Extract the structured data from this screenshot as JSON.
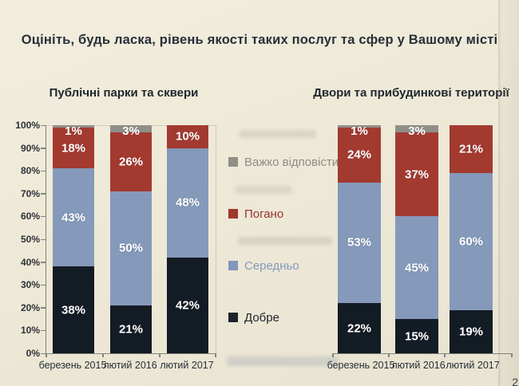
{
  "slide": {
    "title": "Оцініть, будь ласка, рівень якості таких послуг та сфер у Вашому місті",
    "page_number": "2"
  },
  "axis": {
    "y_ticks": [
      "0%",
      "10%",
      "20%",
      "30%",
      "40%",
      "50%",
      "60%",
      "70%",
      "80%",
      "90%",
      "100%"
    ]
  },
  "legend": {
    "items": [
      {
        "name": "Важко відповісти",
        "swatch_color": "#8f8f88",
        "text_color": "#8d8d85"
      },
      {
        "name": "Погано",
        "swatch_color": "#9d382f",
        "text_color": "#953530"
      },
      {
        "name": "Середньо",
        "swatch_color": "#8096bb",
        "text_color": "#8399bd"
      },
      {
        "name": "Добре",
        "swatch_color": "#1b232c",
        "text_color": "#1d252d"
      }
    ]
  },
  "chart_data": [
    {
      "type": "bar",
      "stacked": true,
      "title": "Публічні парки та сквери",
      "categories": [
        "березень 2015",
        "лютий 2016",
        "лютий 2017"
      ],
      "series": [
        {
          "name": "Добре",
          "color": "#131b24",
          "values": [
            38,
            21,
            42
          ]
        },
        {
          "name": "Середньо",
          "color": "#8599ba",
          "values": [
            43,
            50,
            48
          ]
        },
        {
          "name": "Погано",
          "color": "#a33a30",
          "values": [
            18,
            26,
            10
          ]
        },
        {
          "name": "Важко відповісти",
          "color": "#8f8f88",
          "values": [
            1,
            3,
            0
          ]
        }
      ],
      "value_suffix": "%",
      "ylim": [
        0,
        100
      ],
      "y_tick_step": 10,
      "y_axis_visible": true,
      "grid": false
    },
    {
      "type": "bar",
      "stacked": true,
      "title": "Двори та прибудинкові території",
      "categories": [
        "березень 2015",
        "лютий 2016",
        "лютий 2017"
      ],
      "series": [
        {
          "name": "Добре",
          "color": "#131b24",
          "values": [
            22,
            15,
            19
          ]
        },
        {
          "name": "Середньо",
          "color": "#8599ba",
          "values": [
            53,
            45,
            60
          ]
        },
        {
          "name": "Погано",
          "color": "#a33a30",
          "values": [
            24,
            37,
            21
          ]
        },
        {
          "name": "Важко відповісти",
          "color": "#8f8f88",
          "values": [
            1,
            3,
            0
          ]
        }
      ],
      "value_suffix": "%",
      "ylim": [
        0,
        100
      ],
      "y_tick_step": 10,
      "y_axis_visible": false,
      "grid": false,
      "legend_position": "between-charts"
    }
  ]
}
